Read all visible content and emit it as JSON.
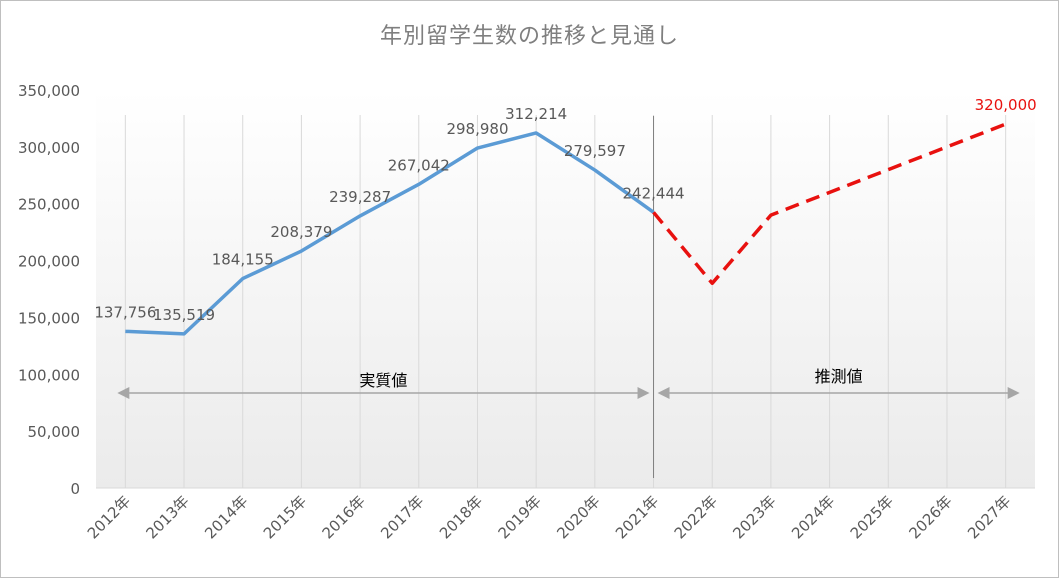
{
  "chart_data": {
    "type": "line",
    "title": "年別留学生数の推移と見通し",
    "categories": [
      "2012年",
      "2013年",
      "2014年",
      "2015年",
      "2016年",
      "2017年",
      "2018年",
      "2019年",
      "2020年",
      "2021年",
      "2022年",
      "2023年",
      "2024年",
      "2025年",
      "2026年",
      "2027年"
    ],
    "y_ticks": [
      "0",
      "50,000",
      "100,000",
      "150,000",
      "200,000",
      "250,000",
      "300,000",
      "350,000"
    ],
    "ylim": [
      0,
      350000
    ],
    "grid": "vertical",
    "series": [
      {
        "role": "actual",
        "color": "#5b9bd5",
        "style": "solid",
        "values": [
          137756,
          135519,
          184155,
          208379,
          239287,
          267042,
          298980,
          312214,
          279597,
          242444,
          null,
          null,
          null,
          null,
          null,
          null
        ],
        "labels": [
          "137,756",
          "135,519",
          "184,155",
          "208,379",
          "239,287",
          "267,042",
          "298,980",
          "312,214",
          "279,597",
          "242,444",
          "",
          "",
          "",
          "",
          "",
          ""
        ]
      },
      {
        "role": "forecast",
        "color": "#e8110f",
        "style": "dashed",
        "values": [
          null,
          null,
          null,
          null,
          null,
          null,
          null,
          null,
          null,
          242444,
          180000,
          240000,
          260000,
          280000,
          300000,
          320000
        ],
        "labels": [
          "",
          "",
          "",
          "",
          "",
          "",
          "",
          "",
          "",
          "",
          "",
          "",
          "",
          "",
          "",
          "320,000"
        ]
      }
    ],
    "annotations": [
      {
        "text": "実質値",
        "from": "2012年",
        "to": "2021年"
      },
      {
        "text": "推測値",
        "from": "2021年",
        "to": "2027年"
      }
    ]
  }
}
